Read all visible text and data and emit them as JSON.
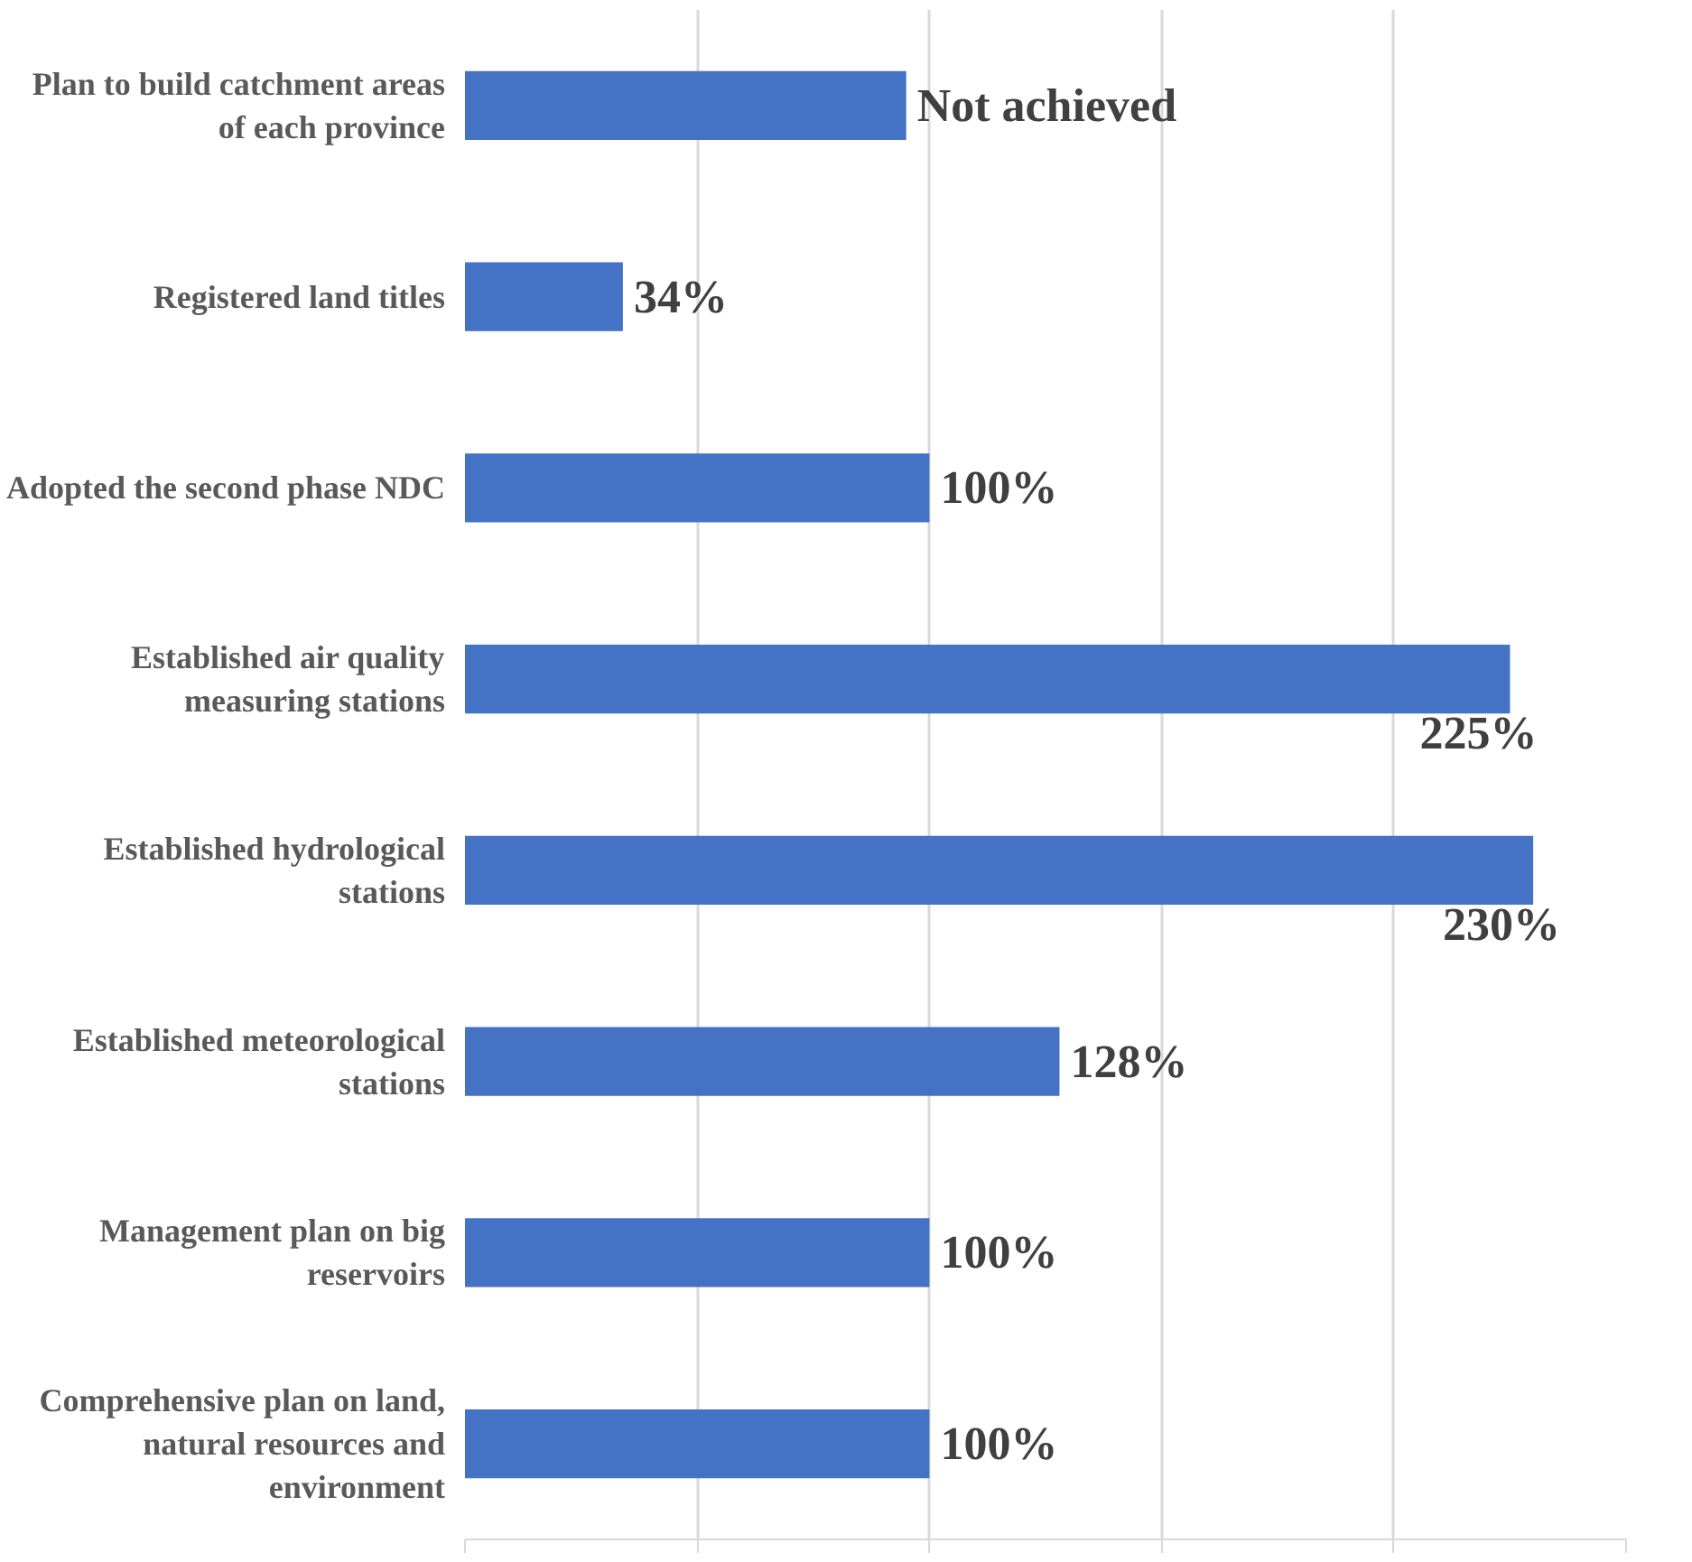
{
  "chart_data": {
    "type": "bar",
    "orientation": "horizontal",
    "categories": [
      "Plan to build catchment areas of each province",
      "Registered land titles",
      "Adopted the second phase NDC",
      "Established air quality measuring stations",
      "Established hydrological stations",
      "Established meteorological stations",
      "Management plan on big reservoirs",
      "Comprehensive plan on land, natural resources and environment"
    ],
    "values": [
      95,
      34,
      100,
      225,
      230,
      128,
      100,
      100
    ],
    "value_labels": [
      "Not achieved",
      "34%",
      "100%",
      "225%",
      "230%",
      "128%",
      "100%",
      "100%"
    ],
    "color": "#4472c4",
    "xlim": [
      0,
      250
    ],
    "xticks": [
      {
        "value": 0,
        "label": null
      },
      {
        "value": 50,
        "label": null
      },
      {
        "value": 100,
        "label": null
      },
      {
        "value": 150,
        "label": null
      },
      {
        "value": 200,
        "label": null
      },
      {
        "value": 250,
        "label": null
      }
    ],
    "grid": "x",
    "tick_labels": "y"
  }
}
